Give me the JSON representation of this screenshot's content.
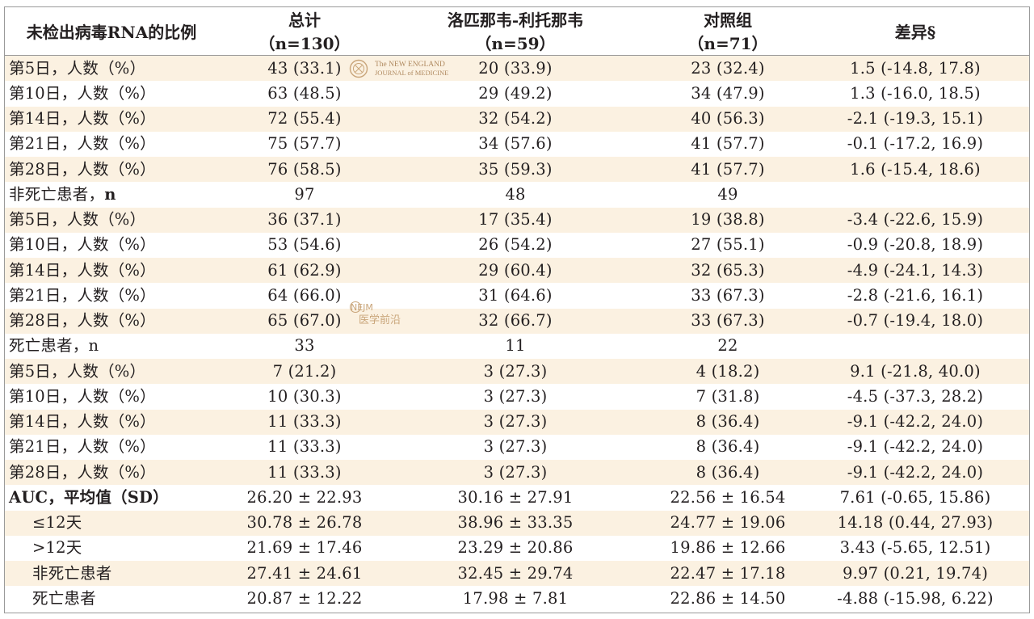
{
  "header": {
    "label": "未检出病毒RNA的比例",
    "total_title": "总计",
    "total_n": "（n=130）",
    "lpvr_title": "洛匹那韦-利托那韦",
    "lpvr_n": "（n=59）",
    "ctrl_title": "对照组",
    "ctrl_n": "（n=71）",
    "diff_title": "差异§"
  },
  "rows": [
    {
      "label": "第5日，人数（%）",
      "total": "43 (33.1)",
      "lpvr": "20 (33.9)",
      "ctrl": "23 (32.4)",
      "diff": "1.5 (-14.8, 17.8)"
    },
    {
      "label": "第10日，人数（%）",
      "total": "63 (48.5)",
      "lpvr": "29 (49.2)",
      "ctrl": "34 (47.9)",
      "diff": "1.3 (-16.0, 18.5)"
    },
    {
      "label": "第14日，人数（%）",
      "total": "72 (55.4)",
      "lpvr": "32 (54.2)",
      "ctrl": "40 (56.3)",
      "diff": "-2.1 (-19.3, 15.1)"
    },
    {
      "label": "第21日，人数（%）",
      "total": "75 (57.7)",
      "lpvr": "34 (57.6)",
      "ctrl": "41 (57.7)",
      "diff": "-0.1 (-17.2, 16.9)"
    },
    {
      "label": "第28日，人数（%）",
      "total": "76 (58.5)",
      "lpvr": "35 (59.3)",
      "ctrl": "41 (57.7)",
      "diff": "1.6 (-15.4, 18.6)"
    },
    {
      "label": "非死亡患者，",
      "label_b": "n",
      "total": "97",
      "lpvr": "48",
      "ctrl": "49",
      "diff": ""
    },
    {
      "label": "第5日，人数（%）",
      "total": "36 (37.1)",
      "lpvr": "17 (35.4)",
      "ctrl": "19 (38.8)",
      "diff": "-3.4 (-22.6, 15.9)"
    },
    {
      "label": "第10日，人数（%）",
      "total": "53 (54.6)",
      "lpvr": "26 (54.2)",
      "ctrl": "27 (55.1)",
      "diff": "-0.9 (-20.8, 18.9)"
    },
    {
      "label": "第14日，人数（%）",
      "total": "61 (62.9)",
      "lpvr": "29 (60.4)",
      "ctrl": "32 (65.3)",
      "diff": "-4.9 (-24.1, 14.3)"
    },
    {
      "label": "第21日，人数（%）",
      "total": "64 (66.0)",
      "lpvr": "31 (64.6)",
      "ctrl": "33 (67.3)",
      "diff": "-2.8 (-21.6, 16.1)"
    },
    {
      "label": "第28日，人数（%）",
      "total": "65 (67.0)",
      "lpvr": "32 (66.7)",
      "ctrl": "33 (67.3)",
      "diff": "-0.7 (-19.4, 18.0)"
    },
    {
      "label": "死亡患者，n",
      "total": "33",
      "lpvr": "11",
      "ctrl": "22",
      "diff": ""
    },
    {
      "label": "第5日，人数（%）",
      "total": "7 (21.2)",
      "lpvr": "3 (27.3)",
      "ctrl": "4 (18.2)",
      "diff": "9.1 (-21.8, 40.0)"
    },
    {
      "label": "第10日，人数（%）",
      "total": "10 (30.3)",
      "lpvr": "3 (27.3)",
      "ctrl": "7 (31.8)",
      "diff": "-4.5 (-37.3, 28.2)"
    },
    {
      "label": "第14日，人数（%）",
      "total": "11 (33.3)",
      "lpvr": "3 (27.3)",
      "ctrl": "8 (36.4)",
      "diff": "-9.1 (-42.2, 24.0)"
    },
    {
      "label": "第21日，人数（%）",
      "total": "11 (33.3)",
      "lpvr": "3 (27.3)",
      "ctrl": "8 (36.4)",
      "diff": "-9.1 (-42.2, 24.0)"
    },
    {
      "label": "第28日，人数（%）",
      "total": "11 (33.3)",
      "lpvr": "3 (27.3)",
      "ctrl": "8 (36.4)",
      "diff": "-9.1 (-42.2, 24.0)"
    },
    {
      "label": "AUC，平均值（SD）",
      "total": "26.20 ± 22.93",
      "lpvr": "30.16 ± 27.91",
      "ctrl": "22.56 ± 16.54",
      "diff": "7.61 (-0.65, 15.86)"
    },
    {
      "label": "≤12天",
      "total": "30.78 ± 26.78",
      "lpvr": "38.96 ± 33.35",
      "ctrl": "24.77 ± 19.06",
      "diff": "14.18 (0.44, 27.93)"
    },
    {
      "label": ">12天",
      "total": "21.69 ± 17.46",
      "lpvr": "23.29 ± 20.86",
      "ctrl": "19.86 ± 12.66",
      "diff": "3.43 (-5.65, 12.51)"
    },
    {
      "label": "非死亡患者",
      "total": "27.41 ± 24.61",
      "lpvr": "32.45 ± 29.74",
      "ctrl": "22.47 ± 17.18",
      "diff": "9.97 (0.21, 19.74)"
    },
    {
      "label": "死亡患者",
      "total": "20.87 ± 12.22",
      "lpvr": "17.98 ± 7.81",
      "ctrl": "22.86 ± 14.50",
      "diff": "-4.88 (-15.98, 6.22)"
    }
  ],
  "watermarks": {
    "nejm_line1": "The NEW ENGLAND",
    "nejm_line2": "JOURNAL of MEDICINE",
    "nejm_cn_logo": "NEJM",
    "nejm_cn_text": "医学前沿"
  },
  "colors": {
    "band": "#fbf1e1",
    "rule": "#9a9a9a",
    "text": "#231f20",
    "watermark": "#c9a57a"
  }
}
